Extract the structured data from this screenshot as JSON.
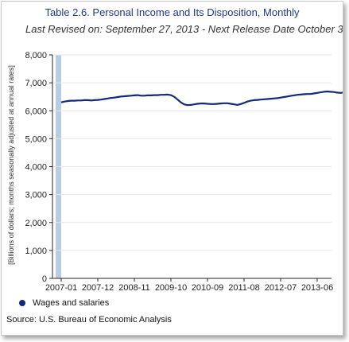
{
  "colors": {
    "line": "#132a7a",
    "title": "#1f3a8a",
    "grid": "#e6e6e6",
    "axis": "#222222",
    "highlight_band": "#b9cde2"
  },
  "chart_data": {
    "type": "line",
    "title": "Table 2.6. Personal Income and Its Disposition, Monthly",
    "subtitle": "Last Revised on: September 27, 2013 - Next Release Date October 3",
    "ylabel": "[Billions of dollars; months seasonally adjusted at annual rates]",
    "xlabel": "",
    "ylim": [
      0,
      8000
    ],
    "yticks": [
      "0",
      "1,000",
      "2,000",
      "3,000",
      "4,000",
      "5,000",
      "6,000",
      "7,000",
      "8,000"
    ],
    "ytick_values": [
      0,
      1000,
      2000,
      3000,
      4000,
      5000,
      6000,
      7000,
      8000
    ],
    "xticks": [
      "2007-01",
      "2007-12",
      "2008-11",
      "2009-10",
      "2010-09",
      "2011-08",
      "2012-07",
      "2013-06"
    ],
    "grid": true,
    "legend_position": "bottom-left",
    "series": [
      {
        "name": "Wages and salaries",
        "start": "2007-01",
        "values": [
          6300,
          6330,
          6350,
          6360,
          6360,
          6370,
          6370,
          6380,
          6380,
          6370,
          6380,
          6390,
          6400,
          6420,
          6440,
          6460,
          6470,
          6490,
          6510,
          6520,
          6530,
          6540,
          6550,
          6560,
          6540,
          6540,
          6550,
          6550,
          6560,
          6560,
          6570,
          6570,
          6580,
          6560,
          6500,
          6400,
          6300,
          6230,
          6200,
          6210,
          6230,
          6250,
          6260,
          6260,
          6250,
          6240,
          6240,
          6250,
          6260,
          6270,
          6270,
          6250,
          6230,
          6210,
          6240,
          6280,
          6330,
          6360,
          6380,
          6390,
          6400,
          6410,
          6420,
          6430,
          6440,
          6450,
          6470,
          6490,
          6510,
          6530,
          6550,
          6570,
          6580,
          6590,
          6600,
          6600,
          6620,
          6640,
          6660,
          6680,
          6690,
          6680,
          6670,
          6650,
          6640,
          6660,
          6700,
          6750,
          6800,
          6820,
          6840,
          6860,
          6870,
          6870,
          6880,
          6890,
          6900,
          6920,
          6950,
          7000,
          7050,
          7100,
          7180,
          6960,
          6990,
          7010,
          7030,
          7040,
          7050,
          7060,
          7060,
          7070,
          7080,
          7090,
          7100,
          7110,
          7120,
          7130,
          7140,
          7130,
          7140,
          7150
        ]
      }
    ]
  },
  "source": "Source: U.S. Bureau of Economic Analysis"
}
